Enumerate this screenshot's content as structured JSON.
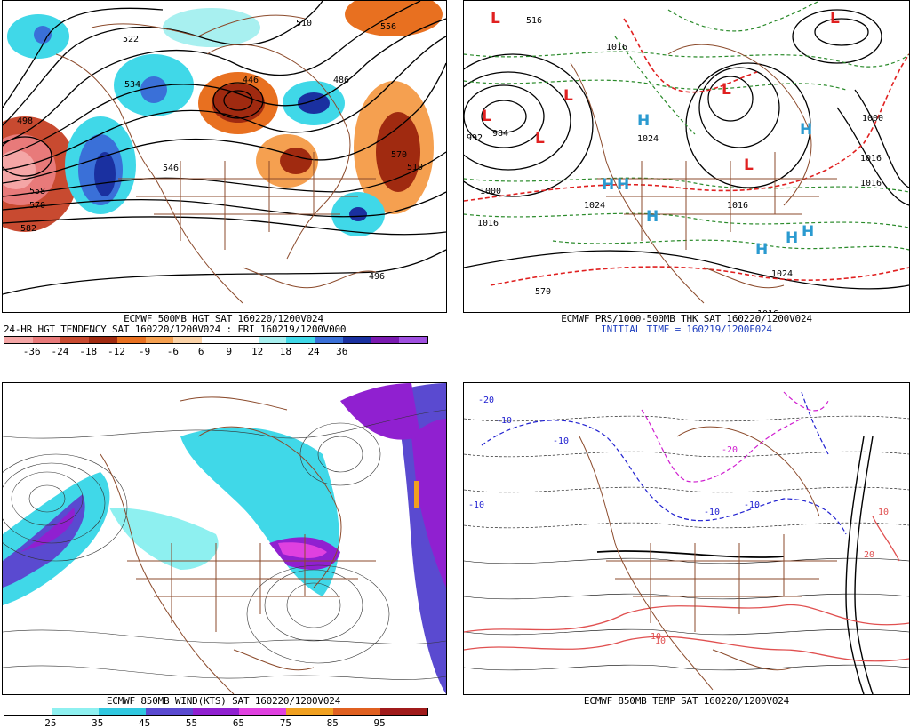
{
  "panels": {
    "p1": {
      "line1": "ECMWF 500MB HGT SAT 160220/1200V024",
      "line2": "24-HR HGT TENDENCY SAT 160220/1200V024 : FRI 160219/1200V000",
      "colorbar": {
        "colors": [
          "#f4a6a6",
          "#e87a7a",
          "#c84a30",
          "#a02a10",
          "#e87020",
          "#f5a050",
          "#fbd3a8",
          "#ffffff",
          "#ffffff",
          "#a8f0f0",
          "#40d8e8",
          "#3a70d8",
          "#1a30a0",
          "#7a1ab0",
          "#a050e0"
        ],
        "ticks": [
          "-36",
          "-24",
          "-18",
          "-12",
          "-9",
          "-6",
          "6",
          "9",
          "12",
          "18",
          "24",
          "36"
        ]
      },
      "labels": [
        "510",
        "522",
        "534",
        "546",
        "558",
        "570",
        "582",
        "496",
        "498",
        "556",
        "570",
        "510",
        "486",
        "446"
      ]
    },
    "p2": {
      "line1": "ECMWF PRS/1000-500MB THK SAT 160220/1200V024",
      "line2": "INITIAL TIME = 160219/1200F024",
      "labels": [
        "992",
        "984",
        "1000",
        "1016",
        "1024",
        "1016",
        "1024",
        "1016",
        "1016",
        "1016",
        "1016",
        "1024",
        "570",
        "1000",
        "516"
      ],
      "highs": [
        "H",
        "H",
        "H",
        "H",
        "H",
        "H",
        "H",
        "H"
      ],
      "lows": [
        "L",
        "L",
        "L",
        "L",
        "L",
        "L",
        "L"
      ]
    },
    "p3": {
      "line1": "ECMWF 850MB WIND(KTS) SAT 160220/1200V024",
      "colorbar": {
        "colors": [
          "#ffffff",
          "#8ef0f0",
          "#30c8e0",
          "#5a4ad0",
          "#9020d0",
          "#e040e0",
          "#f0a020",
          "#e06020",
          "#a01a1a"
        ],
        "ticks": [
          "25",
          "35",
          "45",
          "55",
          "65",
          "75",
          "85",
          "95"
        ]
      }
    },
    "p4": {
      "line1": "ECMWF 850MB TEMP SAT 160220/1200V024",
      "labels": [
        "-20",
        "-10",
        "-10",
        "-10",
        "-10",
        "-10",
        "-20",
        "10",
        "10",
        "10",
        "20"
      ]
    }
  }
}
